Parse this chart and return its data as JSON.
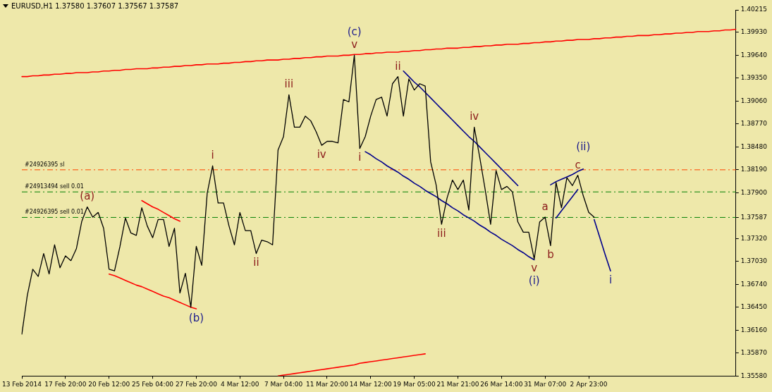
{
  "chart_data": {
    "type": "line",
    "title": "EURUSD,H1  1.37580 1.37607 1.37567 1.37587",
    "categories": [
      "13 Feb 2014",
      null,
      null,
      null,
      null,
      null,
      null,
      null,
      "17 Feb 20:00",
      null,
      null,
      null,
      null,
      null,
      null,
      null,
      "20 Feb 12:00",
      null,
      null,
      null,
      null,
      null,
      null,
      null,
      "25 Feb 04:00",
      null,
      null,
      null,
      null,
      null,
      null,
      null,
      "27 Feb 20:00",
      null,
      null,
      null,
      null,
      null,
      null,
      null,
      "4 Mar 12:00",
      null,
      null,
      null,
      null,
      null,
      null,
      null,
      "7 Mar 04:00",
      null,
      null,
      null,
      null,
      null,
      null,
      null,
      "11 Mar 20:00",
      null,
      null,
      null,
      null,
      null,
      null,
      null,
      "14 Mar 12:00",
      null,
      null,
      null,
      null,
      null,
      null,
      null,
      "19 Mar 05:00",
      null,
      null,
      null,
      null,
      null,
      null,
      null,
      "21 Mar 21:00",
      null,
      null,
      null,
      null,
      null,
      null,
      null,
      "26 Mar 14:00",
      null,
      null,
      null,
      null,
      null,
      null,
      null,
      "31 Mar 07:00",
      null,
      null,
      null,
      null,
      null,
      null,
      null,
      "2 Apr 23:00",
      null,
      null,
      null,
      null,
      null,
      null,
      null,
      null,
      null,
      null,
      null,
      null,
      null,
      null,
      null,
      null,
      null,
      null,
      null,
      null,
      null,
      null,
      null,
      null,
      null,
      null,
      null
    ],
    "ylim": [
      1.3558,
      1.40215
    ],
    "yticks": [
      {
        "value": 1.3558,
        "label": "1.35580"
      },
      {
        "value": 1.3587,
        "label": "1.35870"
      },
      {
        "value": 1.3616,
        "label": "1.36160"
      },
      {
        "value": 1.3645,
        "label": "1.36450"
      },
      {
        "value": 1.3674,
        "label": "1.36740"
      },
      {
        "value": 1.3703,
        "label": "1.37030"
      },
      {
        "value": 1.3732,
        "label": "1.37320"
      },
      1.37587,
      {
        "value": 1.379,
        "label": "1.37900"
      },
      {
        "value": 1.3819,
        "label": "1.38190"
      },
      {
        "value": 1.3848,
        "label": "1.38480"
      },
      {
        "value": 1.3877,
        "label": "1.38770"
      },
      {
        "value": 1.3906,
        "label": "1.39060"
      },
      {
        "value": 1.3935,
        "label": "1.39350"
      },
      {
        "value": 1.3964,
        "label": "1.39640"
      },
      {
        "value": 1.3993,
        "label": "1.39930"
      },
      1.40215
    ],
    "grid": false,
    "legend": false,
    "series": [
      {
        "type": "line",
        "color": "#000000",
        "values": [
          1.3611,
          1.366,
          1.3693,
          1.3684,
          1.3713,
          1.3687,
          1.3724,
          1.3695,
          1.371,
          1.3704,
          1.3719,
          1.3754,
          1.3772,
          1.3759,
          1.3765,
          1.3745,
          1.3693,
          1.3691,
          1.3722,
          1.3758,
          1.3739,
          1.3736,
          1.3771,
          1.3748,
          1.3733,
          1.3756,
          1.3756,
          1.3722,
          1.3745,
          1.3663,
          1.3688,
          1.3645,
          1.3722,
          1.3698,
          1.3789,
          1.3824,
          1.3777,
          1.3777,
          1.3748,
          1.3724,
          1.3765,
          1.3742,
          1.3742,
          1.3713,
          1.373,
          1.3728,
          1.3724,
          1.3844,
          1.3861,
          1.3914,
          1.3873,
          1.3873,
          1.3887,
          1.3881,
          1.3867,
          1.385,
          1.3855,
          1.3855,
          1.3853,
          1.3908,
          1.3905,
          1.3964,
          1.3846,
          1.3861,
          1.3887,
          1.3908,
          1.3911,
          1.3887,
          1.3928,
          1.3937,
          1.3887,
          1.3934,
          1.392,
          1.3928,
          1.3925,
          1.3829,
          1.38,
          1.375,
          1.3783,
          1.3806,
          1.3794,
          1.3806,
          1.3768,
          1.3873,
          1.3835,
          1.3794,
          1.375,
          1.3818,
          1.3794,
          1.3798,
          1.3791,
          1.3753,
          1.374,
          1.374,
          1.3706,
          1.3753,
          1.3759,
          1.3723,
          1.3803,
          1.3771,
          1.3809,
          1.3799,
          1.3812,
          1.3786,
          1.3765,
          1.3759,
          null,
          null,
          null,
          null,
          null,
          null,
          null,
          null,
          null,
          null,
          null,
          null,
          null,
          null,
          null,
          null,
          null,
          null,
          null,
          null,
          null,
          null,
          null,
          null,
          null,
          null
        ],
        "value_labels": [
          null,
          null,
          null,
          null,
          null,
          null,
          null,
          null,
          null,
          null,
          null,
          null,
          "(a)",
          null,
          null,
          null,
          null,
          null,
          null,
          null,
          null,
          null,
          null,
          null,
          null,
          null,
          null,
          null,
          null,
          null,
          null,
          null,
          null,
          null,
          null,
          "i",
          null,
          null,
          null,
          null,
          null,
          null,
          null,
          "ii",
          null,
          null,
          null,
          null,
          null,
          "iii",
          null,
          null,
          null,
          null,
          null,
          "iv",
          null,
          null,
          null,
          null,
          null,
          "v",
          "i",
          null,
          null,
          null,
          null,
          null,
          null,
          "ii",
          null,
          null,
          null,
          null,
          null,
          null,
          null,
          "iii",
          null,
          null,
          null,
          null,
          null,
          "iv",
          null,
          null,
          null,
          null,
          null,
          null,
          null,
          null,
          null,
          null,
          "v",
          null,
          "a",
          "b",
          null,
          null,
          null,
          null,
          "c",
          null,
          null,
          null,
          null,
          null,
          null,
          null,
          null,
          null,
          null,
          null,
          null,
          null,
          null,
          null,
          null,
          null,
          null,
          null,
          null,
          null,
          null,
          null,
          null,
          null,
          null,
          null,
          null,
          null
        ]
      },
      {
        "type": "line",
        "color": "#ff0000",
        "values": [
          1.3937,
          1.3937,
          1.3938,
          1.3938,
          1.3939,
          1.3939,
          1.394,
          1.394,
          1.3941,
          1.3941,
          1.3942,
          1.3942,
          1.3942,
          1.3943,
          1.3943,
          1.3944,
          1.3944,
          1.3945,
          1.3945,
          1.3946,
          1.3946,
          1.3947,
          1.3947,
          1.3947,
          1.3948,
          1.3948,
          1.3949,
          1.3949,
          1.395,
          1.395,
          1.3951,
          1.3951,
          1.3952,
          1.3952,
          1.3953,
          1.3953,
          1.3953,
          1.3954,
          1.3954,
          1.3955,
          1.3955,
          1.3956,
          1.3956,
          1.3957,
          1.3957,
          1.3958,
          1.3958,
          1.3958,
          1.3959,
          1.3959,
          1.396,
          1.396,
          1.3961,
          1.3961,
          1.3962,
          1.3962,
          1.3963,
          1.3963,
          1.3963,
          1.3964,
          1.3964,
          1.3965,
          1.3965,
          1.3966,
          1.3966,
          1.3967,
          1.3967,
          1.3968,
          1.3968,
          1.3968,
          1.3969,
          1.3969,
          1.397,
          1.397,
          1.3971,
          1.3971,
          1.3972,
          1.3972,
          1.3973,
          1.3973,
          1.3973,
          1.3974,
          1.3974,
          1.3975,
          1.3975,
          1.3976,
          1.3976,
          1.3977,
          1.3977,
          1.3978,
          1.3978,
          1.3978,
          1.3979,
          1.3979,
          1.398,
          1.398,
          1.3981,
          1.3981,
          1.3982,
          1.3982,
          1.3983,
          1.3983,
          1.3984,
          1.3984,
          1.3984,
          1.3985,
          1.3985,
          1.3986,
          1.3986,
          1.3987,
          1.3987,
          1.3988,
          1.3988,
          1.3989,
          1.3989,
          1.3989,
          1.399,
          1.399,
          1.3991,
          1.3991,
          1.3992,
          1.3992,
          1.3993,
          1.3993,
          1.3994,
          1.3994,
          1.3994,
          1.3995,
          1.3995,
          1.3996,
          1.3996,
          1.3997
        ],
        "value_labels": [
          null,
          null,
          null,
          null,
          null,
          null,
          null,
          null,
          null,
          null,
          null,
          null,
          null,
          null,
          null,
          null,
          null,
          null,
          null,
          null,
          null,
          null,
          null,
          null,
          null,
          null,
          null,
          null,
          null,
          null,
          null,
          null,
          null,
          null,
          null,
          null,
          null,
          null,
          null,
          null,
          null,
          null,
          null,
          null,
          null,
          null,
          null,
          null,
          null,
          null,
          null,
          null,
          null,
          null,
          null,
          null,
          null,
          null,
          null,
          null,
          null,
          "(c)",
          null,
          null,
          null,
          null,
          null,
          null,
          null,
          null,
          null,
          null,
          null,
          null,
          null,
          null,
          null,
          null,
          null,
          null,
          null,
          null,
          null,
          null,
          null,
          null,
          null,
          null,
          null,
          null,
          null,
          null,
          null,
          null,
          null,
          null,
          null,
          null,
          null,
          null,
          null,
          null,
          null,
          null,
          null,
          null,
          null,
          null,
          null,
          null,
          null,
          null,
          null,
          null,
          null,
          null,
          null,
          null,
          null,
          null,
          null,
          null,
          null,
          null,
          null,
          null,
          null,
          null,
          null,
          null,
          null,
          null
        ]
      },
      {
        "type": "line",
        "color": "#ff0000",
        "values": [
          null,
          null,
          null,
          null,
          null,
          null,
          null,
          null,
          null,
          null,
          null,
          null,
          null,
          null,
          null,
          null,
          null,
          null,
          null,
          null,
          null,
          null,
          null,
          null,
          null,
          null,
          null,
          null,
          null,
          null,
          null,
          null,
          null,
          null,
          null,
          null,
          null,
          null,
          null,
          null,
          null,
          null,
          null,
          null,
          null,
          null,
          null,
          1.3558,
          1.3559,
          1.356,
          1.3561,
          1.3562,
          1.3563,
          1.3564,
          1.3565,
          1.3566,
          1.3567,
          1.3568,
          1.3569,
          1.357,
          1.3571,
          1.3572,
          1.3574,
          1.3575,
          1.3576,
          1.3577,
          1.3578,
          1.3579,
          1.358,
          1.3581,
          1.3582,
          1.3583,
          1.3584,
          1.3585,
          1.3586,
          null,
          null,
          null,
          null,
          null,
          null,
          null,
          null,
          null,
          null,
          null,
          null,
          null,
          null,
          null,
          null,
          null,
          null,
          null,
          null,
          null,
          null,
          null,
          null,
          null,
          null,
          null,
          null,
          null,
          null,
          null,
          null,
          null,
          null,
          null,
          null,
          null,
          null,
          null,
          null,
          null,
          null,
          null,
          null,
          null,
          null,
          null,
          null,
          null,
          null,
          null,
          null,
          null,
          null,
          null,
          null,
          null
        ]
      },
      {
        "type": "line",
        "color": "#ff0000",
        "values": [
          null,
          null,
          null,
          null,
          null,
          null,
          null,
          null,
          null,
          null,
          null,
          null,
          null,
          null,
          null,
          null,
          1.3687,
          1.3685,
          1.3682,
          1.3679,
          1.3676,
          1.3673,
          1.3671,
          1.3668,
          1.3665,
          1.3662,
          1.3659,
          1.3657,
          1.3654,
          1.3651,
          1.3648,
          1.3645,
          1.3643,
          null,
          null,
          null,
          null,
          null,
          null,
          null,
          null,
          null,
          null,
          null,
          null,
          null,
          null,
          null,
          null,
          null,
          null,
          null,
          null,
          null,
          null,
          null,
          null,
          null,
          null,
          null,
          null,
          null,
          null,
          null,
          null,
          null,
          null,
          null,
          null,
          null,
          null,
          null,
          null,
          null,
          null,
          null,
          null,
          null,
          null,
          null,
          null,
          null,
          null,
          null,
          null,
          null,
          null,
          null,
          null,
          null,
          null,
          null,
          null,
          null,
          null,
          null,
          null,
          null,
          null,
          null,
          null,
          null,
          null,
          null,
          null,
          null,
          null,
          null,
          null,
          null,
          null,
          null,
          null,
          null,
          null,
          null,
          null,
          null,
          null,
          null,
          null,
          null,
          null,
          null,
          null,
          null,
          null,
          null,
          null,
          null,
          null,
          null
        ],
        "value_labels": [
          null,
          null,
          null,
          null,
          null,
          null,
          null,
          null,
          null,
          null,
          null,
          null,
          null,
          null,
          null,
          null,
          null,
          null,
          null,
          null,
          null,
          null,
          null,
          null,
          null,
          null,
          null,
          null,
          null,
          null,
          null,
          null,
          "(b)",
          null,
          null,
          null,
          null,
          null,
          null,
          null,
          null,
          null,
          null,
          null,
          null,
          null,
          null,
          null,
          null,
          null,
          null,
          null,
          null,
          null,
          null,
          null,
          null,
          null,
          null,
          null,
          null,
          null,
          null,
          null,
          null,
          null,
          null,
          null,
          null,
          null,
          null,
          null,
          null,
          null,
          null,
          null,
          null,
          null,
          null,
          null,
          null,
          null,
          null,
          null,
          null,
          null,
          null,
          null,
          null,
          null,
          null,
          null,
          null,
          null,
          null,
          null,
          null,
          null,
          null,
          null,
          null,
          null,
          null,
          null,
          null,
          null,
          null,
          null,
          null,
          null,
          null,
          null,
          null,
          null,
          null,
          null,
          null,
          null,
          null,
          null,
          null,
          null,
          null,
          null,
          null,
          null,
          null,
          null,
          null,
          null,
          null,
          null
        ]
      },
      {
        "type": "line",
        "color": "#ff0000",
        "values": [
          null,
          null,
          null,
          null,
          null,
          null,
          null,
          null,
          null,
          null,
          null,
          null,
          null,
          null,
          null,
          null,
          null,
          null,
          null,
          null,
          null,
          null,
          1.378,
          1.3776,
          1.3772,
          1.3769,
          1.3765,
          1.3761,
          1.3757,
          1.3754,
          null,
          null,
          null,
          null,
          null,
          null,
          null,
          null,
          null,
          null,
          null,
          null,
          null,
          null,
          null,
          null,
          null,
          null,
          null,
          null,
          null,
          null,
          null,
          null,
          null,
          null,
          null,
          null,
          null,
          null,
          null,
          null,
          null,
          null,
          null,
          null,
          null,
          null,
          null,
          null,
          null,
          null,
          null,
          null,
          null,
          null,
          null,
          null,
          null,
          null,
          null,
          null,
          null,
          null,
          null,
          null,
          null,
          null,
          null,
          null,
          null,
          null,
          null,
          null,
          null,
          null,
          null,
          null,
          null,
          null,
          null,
          null,
          null,
          null,
          null,
          null,
          null,
          null,
          null,
          null,
          null,
          null,
          null,
          null,
          null,
          null,
          null,
          null,
          null,
          null,
          null,
          null,
          null,
          null,
          null,
          null,
          null,
          null,
          null,
          null,
          null,
          null
        ]
      },
      {
        "type": "line",
        "color": "#00008b",
        "values": [
          null,
          null,
          null,
          null,
          null,
          null,
          null,
          null,
          null,
          null,
          null,
          null,
          null,
          null,
          null,
          null,
          null,
          null,
          null,
          null,
          null,
          null,
          null,
          null,
          null,
          null,
          null,
          null,
          null,
          null,
          null,
          null,
          null,
          null,
          null,
          null,
          null,
          null,
          null,
          null,
          null,
          null,
          null,
          null,
          null,
          null,
          null,
          null,
          null,
          null,
          null,
          null,
          null,
          null,
          null,
          null,
          null,
          null,
          null,
          null,
          null,
          null,
          null,
          1.3842,
          1.3838,
          1.3833,
          1.3829,
          1.3824,
          1.382,
          1.3816,
          1.3811,
          1.3807,
          1.3802,
          1.3798,
          1.3793,
          1.3789,
          1.3785,
          1.378,
          1.3776,
          1.3771,
          1.3767,
          1.3762,
          1.3758,
          1.3754,
          1.3749,
          1.3745,
          1.374,
          1.3736,
          1.3731,
          1.3727,
          1.3723,
          1.3718,
          1.3714,
          1.3709,
          1.3705,
          null,
          null,
          null,
          null,
          null,
          null,
          null,
          null,
          null,
          null,
          null,
          null,
          null,
          null,
          null,
          null,
          null,
          null,
          null,
          null,
          null,
          null,
          null,
          null,
          null,
          null,
          null,
          null,
          null,
          null,
          null,
          null,
          null,
          null,
          null,
          null,
          null
        ],
        "value_labels": [
          null,
          null,
          null,
          null,
          null,
          null,
          null,
          null,
          null,
          null,
          null,
          null,
          null,
          null,
          null,
          null,
          null,
          null,
          null,
          null,
          null,
          null,
          null,
          null,
          null,
          null,
          null,
          null,
          null,
          null,
          null,
          null,
          null,
          null,
          null,
          null,
          null,
          null,
          null,
          null,
          null,
          null,
          null,
          null,
          null,
          null,
          null,
          null,
          null,
          null,
          null,
          null,
          null,
          null,
          null,
          null,
          null,
          null,
          null,
          null,
          null,
          null,
          null,
          null,
          null,
          null,
          null,
          null,
          null,
          null,
          null,
          null,
          null,
          null,
          null,
          null,
          null,
          null,
          null,
          null,
          null,
          null,
          null,
          null,
          null,
          null,
          null,
          null,
          null,
          null,
          null,
          null,
          null,
          null,
          "(i)",
          null,
          null,
          null,
          null,
          null,
          null,
          null,
          null,
          null,
          null,
          null,
          null,
          null,
          null,
          null,
          null,
          null,
          null,
          null,
          null,
          null,
          null,
          null,
          null,
          null,
          null,
          null,
          null,
          null,
          null,
          null,
          null,
          null,
          null,
          null,
          null,
          null
        ]
      },
      {
        "type": "line",
        "color": "#00008b",
        "values": [
          null,
          null,
          null,
          null,
          null,
          null,
          null,
          null,
          null,
          null,
          null,
          null,
          null,
          null,
          null,
          null,
          null,
          null,
          null,
          null,
          null,
          null,
          null,
          null,
          null,
          null,
          null,
          null,
          null,
          null,
          null,
          null,
          null,
          null,
          null,
          null,
          null,
          null,
          null,
          null,
          null,
          null,
          null,
          null,
          null,
          null,
          null,
          null,
          null,
          null,
          null,
          null,
          null,
          null,
          null,
          null,
          null,
          null,
          null,
          null,
          null,
          null,
          null,
          null,
          null,
          null,
          null,
          null,
          null,
          null,
          1.3944,
          1.3937,
          1.393,
          1.3924,
          1.3917,
          1.391,
          1.3903,
          1.3896,
          1.3889,
          1.3882,
          1.3875,
          1.3868,
          1.3861,
          1.3855,
          1.3848,
          1.3841,
          1.3834,
          1.3827,
          1.382,
          1.3813,
          1.3806,
          1.3799,
          null,
          null,
          null,
          null,
          null,
          null,
          null,
          null,
          null,
          null,
          null,
          null,
          null,
          null,
          null,
          null,
          null,
          null,
          null,
          null,
          null,
          null,
          null,
          null,
          null,
          null,
          null,
          null,
          null,
          null,
          null,
          null,
          null,
          null,
          null,
          null,
          null,
          null,
          null,
          null
        ]
      },
      {
        "type": "line",
        "color": "#00008b",
        "values": [
          null,
          null,
          null,
          null,
          null,
          null,
          null,
          null,
          null,
          null,
          null,
          null,
          null,
          null,
          null,
          null,
          null,
          null,
          null,
          null,
          null,
          null,
          null,
          null,
          null,
          null,
          null,
          null,
          null,
          null,
          null,
          null,
          null,
          null,
          null,
          null,
          null,
          null,
          null,
          null,
          null,
          null,
          null,
          null,
          null,
          null,
          null,
          null,
          null,
          null,
          null,
          null,
          null,
          null,
          null,
          null,
          null,
          null,
          null,
          null,
          null,
          null,
          null,
          null,
          null,
          null,
          null,
          null,
          null,
          null,
          null,
          null,
          null,
          null,
          null,
          null,
          null,
          null,
          null,
          null,
          null,
          null,
          null,
          null,
          null,
          null,
          null,
          null,
          null,
          null,
          null,
          null,
          null,
          null,
          null,
          null,
          null,
          1.38,
          1.3804,
          1.3807,
          1.381,
          1.3813,
          1.3817,
          1.382,
          null,
          null,
          null,
          null,
          null,
          null,
          null,
          null,
          null,
          null,
          null,
          null,
          null,
          null,
          null,
          null,
          null,
          null,
          null,
          null,
          null,
          null,
          null,
          null,
          null,
          null,
          null,
          null
        ],
        "value_labels": [
          null,
          null,
          null,
          null,
          null,
          null,
          null,
          null,
          null,
          null,
          null,
          null,
          null,
          null,
          null,
          null,
          null,
          null,
          null,
          null,
          null,
          null,
          null,
          null,
          null,
          null,
          null,
          null,
          null,
          null,
          null,
          null,
          null,
          null,
          null,
          null,
          null,
          null,
          null,
          null,
          null,
          null,
          null,
          null,
          null,
          null,
          null,
          null,
          null,
          null,
          null,
          null,
          null,
          null,
          null,
          null,
          null,
          null,
          null,
          null,
          null,
          null,
          null,
          null,
          null,
          null,
          null,
          null,
          null,
          null,
          null,
          null,
          null,
          null,
          null,
          null,
          null,
          null,
          null,
          null,
          null,
          null,
          null,
          null,
          null,
          null,
          null,
          null,
          null,
          null,
          null,
          null,
          null,
          null,
          null,
          null,
          null,
          null,
          null,
          null,
          null,
          null,
          null,
          "(ii)",
          null,
          null,
          null,
          null,
          null,
          null,
          null,
          null,
          null,
          null,
          null,
          null,
          null,
          null,
          null,
          null,
          null,
          null,
          null,
          null,
          null,
          null,
          null,
          null,
          null,
          null,
          null,
          null
        ]
      },
      {
        "type": "line",
        "color": "#00008b",
        "values": [
          null,
          null,
          null,
          null,
          null,
          null,
          null,
          null,
          null,
          null,
          null,
          null,
          null,
          null,
          null,
          null,
          null,
          null,
          null,
          null,
          null,
          null,
          null,
          null,
          null,
          null,
          null,
          null,
          null,
          null,
          null,
          null,
          null,
          null,
          null,
          null,
          null,
          null,
          null,
          null,
          null,
          null,
          null,
          null,
          null,
          null,
          null,
          null,
          null,
          null,
          null,
          null,
          null,
          null,
          null,
          null,
          null,
          null,
          null,
          null,
          null,
          null,
          null,
          null,
          null,
          null,
          null,
          null,
          null,
          null,
          null,
          null,
          null,
          null,
          null,
          null,
          null,
          null,
          null,
          null,
          null,
          null,
          null,
          null,
          null,
          null,
          null,
          null,
          null,
          null,
          null,
          null,
          null,
          null,
          null,
          null,
          null,
          null,
          1.3758,
          1.3767,
          1.3776,
          1.3785,
          1.3794,
          null,
          null,
          null,
          null,
          null,
          null,
          null,
          null,
          null,
          null,
          null,
          null,
          null,
          null,
          null,
          null,
          null,
          null,
          null,
          null,
          null,
          null,
          null,
          null,
          null,
          null,
          null,
          null,
          null
        ]
      },
      {
        "type": "line",
        "color": "#00008b",
        "values": [
          null,
          null,
          null,
          null,
          null,
          null,
          null,
          null,
          null,
          null,
          null,
          null,
          null,
          null,
          null,
          null,
          null,
          null,
          null,
          null,
          null,
          null,
          null,
          null,
          null,
          null,
          null,
          null,
          null,
          null,
          null,
          null,
          null,
          null,
          null,
          null,
          null,
          null,
          null,
          null,
          null,
          null,
          null,
          null,
          null,
          null,
          null,
          null,
          null,
          null,
          null,
          null,
          null,
          null,
          null,
          null,
          null,
          null,
          null,
          null,
          null,
          null,
          null,
          null,
          null,
          null,
          null,
          null,
          null,
          null,
          null,
          null,
          null,
          null,
          null,
          null,
          null,
          null,
          null,
          null,
          null,
          null,
          null,
          null,
          null,
          null,
          null,
          null,
          null,
          null,
          null,
          null,
          null,
          null,
          null,
          null,
          null,
          null,
          null,
          null,
          null,
          null,
          null,
          null,
          null,
          1.3756,
          1.3734,
          1.3712,
          1.3691,
          null,
          null,
          null,
          null,
          null,
          null,
          null,
          null,
          null,
          null,
          null,
          null,
          null,
          null,
          null,
          null,
          null,
          null,
          null,
          null,
          null,
          null,
          null
        ],
        "value_labels": [
          null,
          null,
          null,
          null,
          null,
          null,
          null,
          null,
          null,
          null,
          null,
          null,
          null,
          null,
          null,
          null,
          null,
          null,
          null,
          null,
          null,
          null,
          null,
          null,
          null,
          null,
          null,
          null,
          null,
          null,
          null,
          null,
          null,
          null,
          null,
          null,
          null,
          null,
          null,
          null,
          null,
          null,
          null,
          null,
          null,
          null,
          null,
          null,
          null,
          null,
          null,
          null,
          null,
          null,
          null,
          null,
          null,
          null,
          null,
          null,
          null,
          null,
          null,
          null,
          null,
          null,
          null,
          null,
          null,
          null,
          null,
          null,
          null,
          null,
          null,
          null,
          null,
          null,
          null,
          null,
          null,
          null,
          null,
          null,
          null,
          null,
          null,
          null,
          null,
          null,
          null,
          null,
          null,
          null,
          null,
          null,
          null,
          null,
          null,
          null,
          null,
          null,
          null,
          null,
          null,
          null,
          null,
          null,
          "i",
          null,
          null,
          null,
          null,
          null,
          null,
          null,
          null,
          null,
          null,
          null,
          null,
          null,
          null,
          null,
          null,
          null,
          null,
          null,
          null,
          null,
          null,
          null
        ]
      }
    ],
    "ref_lines": [
      {
        "axis": "y",
        "value": 1.3819,
        "label": "#24926395 sl",
        "color": "#ff4500",
        "line_style": "dashed"
      },
      {
        "axis": "y",
        "value": 1.3791,
        "label": "#24913494 sell 0.01",
        "color": "#008000",
        "line_style": "dashed"
      },
      {
        "axis": "y",
        "value": 1.37587,
        "label": "#24926395 sell 0.01",
        "color": "#008000",
        "line_style": "dashed"
      }
    ]
  }
}
